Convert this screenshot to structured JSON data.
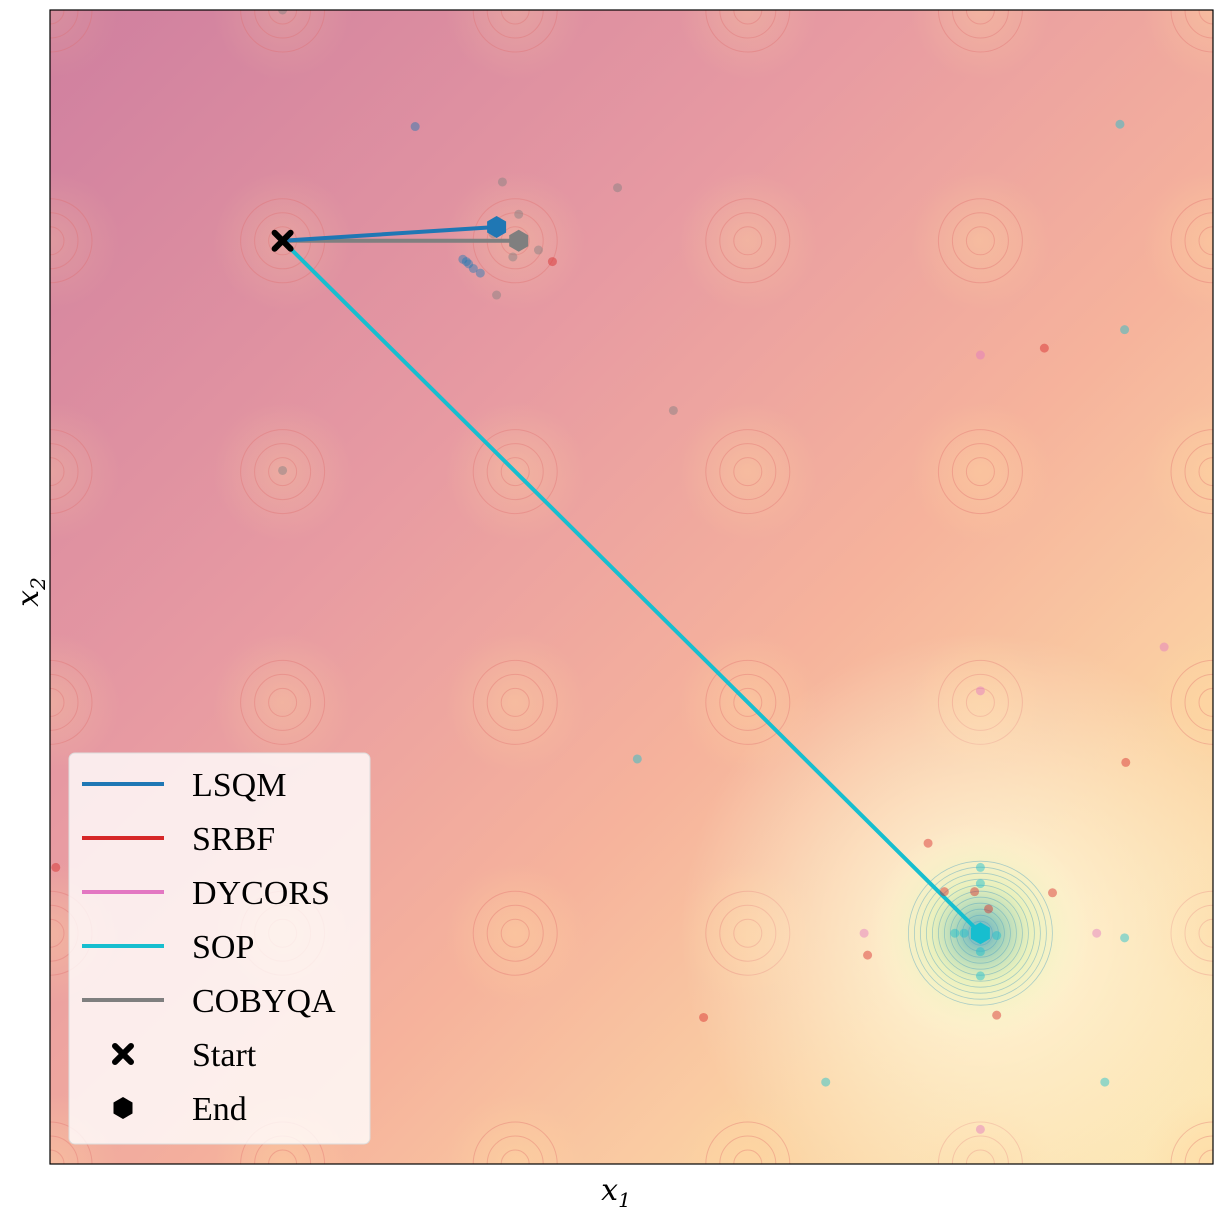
{
  "chart_data": {
    "type": "scatter",
    "title": "",
    "xlabel": "x",
    "xlabel_sub": "1",
    "ylabel": "x",
    "ylabel_sub": "2",
    "xlim": [
      0,
      1
    ],
    "ylim": [
      0,
      1
    ],
    "grid": false,
    "legend_position": "lower-left",
    "background": "contour-landscape",
    "global_minimum": [
      0.8,
      0.2
    ],
    "start": [
      0.2,
      0.8
    ],
    "legend": [
      {
        "label": "LSQM",
        "kind": "line",
        "color": "#1f77b4"
      },
      {
        "label": "SRBF",
        "kind": "line",
        "color": "#d62728"
      },
      {
        "label": "DYCORS",
        "kind": "line",
        "color": "#e377c2"
      },
      {
        "label": "SOP",
        "kind": "line",
        "color": "#17becf"
      },
      {
        "label": "COBYQA",
        "kind": "line",
        "color": "#7f7f7f"
      },
      {
        "label": "Start",
        "kind": "x-marker",
        "color": "#000000"
      },
      {
        "label": "End",
        "kind": "hexagon",
        "color": "#000000"
      }
    ],
    "series": [
      {
        "name": "LSQM",
        "color": "#1f77b4",
        "path": [
          [
            0.2,
            0.8
          ],
          [
            0.384,
            0.812
          ]
        ],
        "samples": [
          [
            0.314,
            0.899
          ],
          [
            0.355,
            0.784
          ],
          [
            0.358,
            0.782
          ],
          [
            0.36,
            0.78
          ],
          [
            0.364,
            0.776
          ],
          [
            0.37,
            0.772
          ]
        ]
      },
      {
        "name": "SRBF",
        "color": "#d62728",
        "path": [
          [
            0.2,
            0.8
          ],
          [
            0.2,
            0.8
          ]
        ],
        "samples": [
          [
            0.005,
            0.257
          ],
          [
            0.432,
            0.782
          ],
          [
            0.855,
            0.707
          ],
          [
            0.925,
            0.348
          ],
          [
            0.755,
            0.278
          ],
          [
            0.769,
            0.236
          ],
          [
            0.795,
            0.236
          ],
          [
            0.807,
            0.221
          ],
          [
            0.862,
            0.235
          ],
          [
            0.703,
            0.181
          ],
          [
            0.562,
            0.127
          ],
          [
            0.814,
            0.129
          ]
        ]
      },
      {
        "name": "DYCORS",
        "color": "#e377c2",
        "path": [
          [
            0.2,
            0.8
          ],
          [
            0.2,
            0.8
          ]
        ],
        "samples": [
          [
            0.8,
            0.701
          ],
          [
            0.958,
            0.448
          ],
          [
            0.8,
            0.41
          ],
          [
            0.7,
            0.2
          ],
          [
            0.9,
            0.2
          ],
          [
            0.8,
            0.03
          ]
        ]
      },
      {
        "name": "SOP",
        "color": "#17becf",
        "path": [
          [
            0.2,
            0.8
          ],
          [
            0.8,
            0.2
          ]
        ],
        "samples": [
          [
            0.92,
            0.901
          ],
          [
            0.924,
            0.723
          ],
          [
            0.505,
            0.351
          ],
          [
            0.8,
            0.257
          ],
          [
            0.8,
            0.243
          ],
          [
            0.778,
            0.2
          ],
          [
            0.786,
            0.2
          ],
          [
            0.814,
            0.198
          ],
          [
            0.8,
            0.184
          ],
          [
            0.924,
            0.196
          ],
          [
            0.8,
            0.163
          ],
          [
            0.667,
            0.071
          ],
          [
            0.907,
            0.071
          ]
        ]
      },
      {
        "name": "COBYQA",
        "color": "#7f7f7f",
        "path": [
          [
            0.2,
            0.8
          ],
          [
            0.403,
            0.8
          ]
        ],
        "samples": [
          [
            0.2,
            1.0
          ],
          [
            0.389,
            0.851
          ],
          [
            0.488,
            0.846
          ],
          [
            0.403,
            0.823
          ],
          [
            0.381,
            0.806
          ],
          [
            0.42,
            0.792
          ],
          [
            0.398,
            0.786
          ],
          [
            0.384,
            0.753
          ],
          [
            0.536,
            0.653
          ],
          [
            0.2,
            0.601
          ]
        ]
      }
    ]
  }
}
